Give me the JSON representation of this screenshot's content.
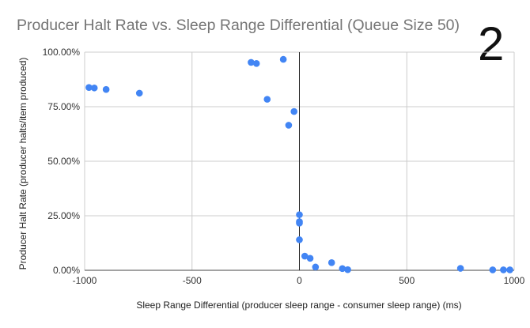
{
  "chart_data": {
    "type": "scatter",
    "title": "Producer Halt Rate vs. Sleep Range Differential (Queue Size 50)",
    "corner_label": "2",
    "xlabel": "Sleep Range Differential (producer sleep range - consumer sleep range) (ms)",
    "ylabel": "Producer Halt Rate (producer halts/item produced)",
    "xlim": [
      -1000,
      1000
    ],
    "ylim": [
      0,
      100
    ],
    "x_ticks": [
      "-1000",
      "-500",
      "0",
      "500",
      "1000"
    ],
    "y_ticks": [
      "0.00%",
      "25.00%",
      "50.00%",
      "75.00%",
      "100.00%"
    ],
    "grid": true,
    "marker_color": "#4285f4",
    "points": [
      {
        "x": -980,
        "y": 83.8
      },
      {
        "x": -955,
        "y": 83.6
      },
      {
        "x": -900,
        "y": 82.9
      },
      {
        "x": -745,
        "y": 81.2
      },
      {
        "x": -225,
        "y": 95.3
      },
      {
        "x": -200,
        "y": 94.8
      },
      {
        "x": -150,
        "y": 78.4
      },
      {
        "x": -75,
        "y": 96.7
      },
      {
        "x": -25,
        "y": 72.8
      },
      {
        "x": -50,
        "y": 66.5
      },
      {
        "x": 0,
        "y": 25.5
      },
      {
        "x": 0,
        "y": 22.3
      },
      {
        "x": 0,
        "y": 21.6
      },
      {
        "x": 0,
        "y": 14.0
      },
      {
        "x": 25,
        "y": 6.5
      },
      {
        "x": 50,
        "y": 5.5
      },
      {
        "x": 75,
        "y": 1.5
      },
      {
        "x": 150,
        "y": 3.5
      },
      {
        "x": 200,
        "y": 0.8
      },
      {
        "x": 225,
        "y": 0.3
      },
      {
        "x": 750,
        "y": 0.9
      },
      {
        "x": 900,
        "y": 0.2
      },
      {
        "x": 950,
        "y": 0.2
      },
      {
        "x": 980,
        "y": 0.2
      }
    ]
  }
}
